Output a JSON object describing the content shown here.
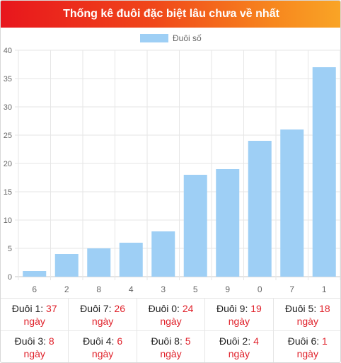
{
  "header": {
    "title": "Thống kê đuôi đặc biệt lâu chưa về nhất"
  },
  "chart_data": {
    "type": "bar",
    "categories": [
      "6",
      "2",
      "8",
      "4",
      "3",
      "5",
      "9",
      "0",
      "7",
      "1"
    ],
    "series": [
      {
        "name": "Đuôi số",
        "values": [
          1,
          4,
          5,
          6,
          8,
          18,
          19,
          24,
          26,
          37
        ],
        "color": "#9ecff5"
      }
    ],
    "ylim": [
      0,
      40
    ],
    "yticks": [
      0,
      5,
      10,
      15,
      20,
      25,
      30,
      35,
      40
    ],
    "grid": true,
    "legend": "top-center"
  },
  "stats": {
    "prefix": "Đuôi ",
    "unit": "ngày",
    "items": [
      {
        "digit": "1",
        "days": "37"
      },
      {
        "digit": "7",
        "days": "26"
      },
      {
        "digit": "0",
        "days": "24"
      },
      {
        "digit": "9",
        "days": "19"
      },
      {
        "digit": "5",
        "days": "18"
      },
      {
        "digit": "3",
        "days": "8"
      },
      {
        "digit": "4",
        "days": "6"
      },
      {
        "digit": "8",
        "days": "5"
      },
      {
        "digit": "2",
        "days": "4"
      },
      {
        "digit": "6",
        "days": "1"
      }
    ]
  }
}
